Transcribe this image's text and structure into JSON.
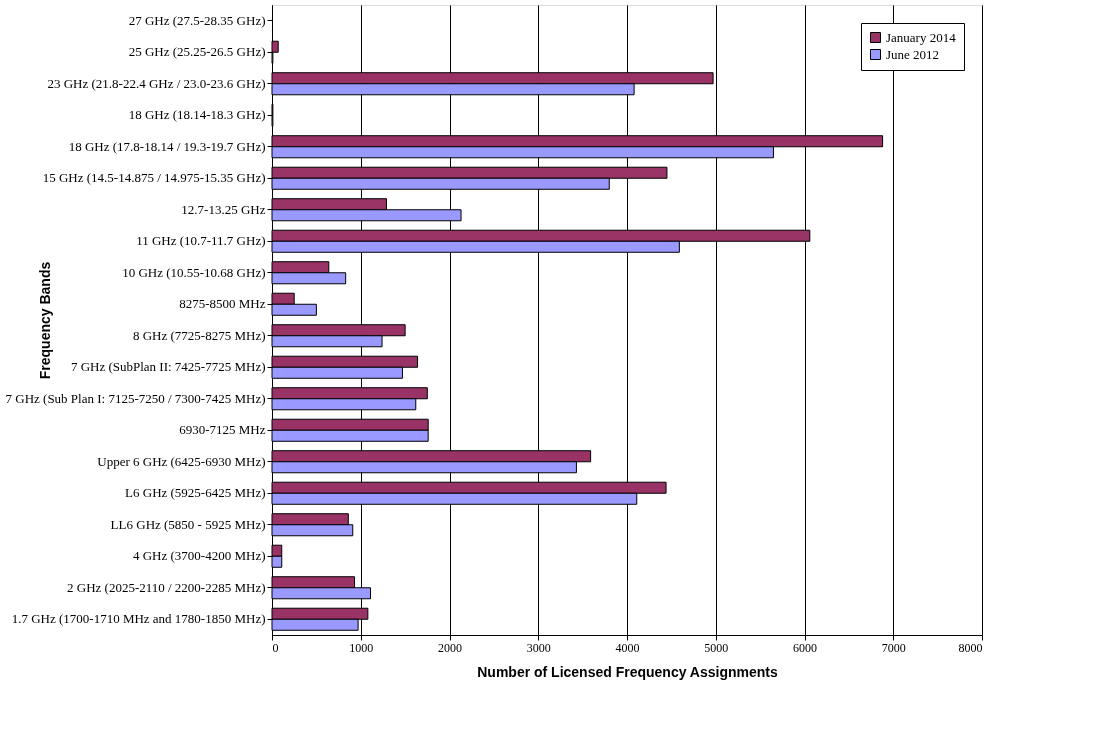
{
  "chart_data": {
    "type": "bar",
    "orientation": "horizontal",
    "xlabel": "Number of Licensed Frequency Assignments",
    "ylabel": "Frequency Bands",
    "categories": [
      "27 GHz (27.5-28.35 GHz)",
      "25 GHz (25.25-26.5 GHz)",
      "23 GHz (21.8-22.4 GHz / 23.0-23.6 GHz)",
      "18 GHz (18.14-18.3 GHz)",
      "18 GHz (17.8-18.14 / 19.3-19.7 GHz)",
      "15 GHz (14.5-14.875 / 14.975-15.35 GHz)",
      "12.7-13.25 GHz",
      "11 GHz (10.7-11.7 GHz)",
      "10 GHz (10.55-10.68 GHz)",
      "8275-8500 MHz",
      "8 GHz (7725-8275 MHz)",
      "7 GHz (SubPlan II: 7425-7725 MHz)",
      "7 GHz (Sub Plan I: 7125-7250 / 7300-7425 MHz)",
      "6930-7125 MHz",
      "Upper 6 GHz (6425-6930 MHz)",
      "L6 GHz (5925-6425 MHz)",
      "LL6 GHz (5850 - 5925 MHz)",
      "4 GHz (3700-4200 MHz)",
      "2 GHz (2025-2110 / 2200-2285 MHz)",
      "1.7 GHz (1700-1710 MHz and 1780-1850 MHz)"
    ],
    "series": [
      {
        "name": "January 2014",
        "color": "#993366",
        "values": [
          null,
          70,
          4970,
          10,
          6880,
          4450,
          1290,
          6060,
          640,
          250,
          1500,
          1640,
          1750,
          1760,
          3590,
          4440,
          860,
          110,
          930,
          1080
        ]
      },
      {
        "name": "June 2012",
        "color": "#9999ff",
        "values": [
          null,
          10,
          4080,
          10,
          5650,
          3800,
          2130,
          4590,
          830,
          500,
          1240,
          1470,
          1620,
          1760,
          3430,
          4110,
          910,
          110,
          1110,
          970
        ]
      }
    ],
    "xlim": [
      0,
      8000
    ],
    "xticks": [
      0,
      1000,
      2000,
      3000,
      4000,
      5000,
      6000,
      7000,
      8000
    ],
    "grid": "x",
    "legend": "top right"
  }
}
